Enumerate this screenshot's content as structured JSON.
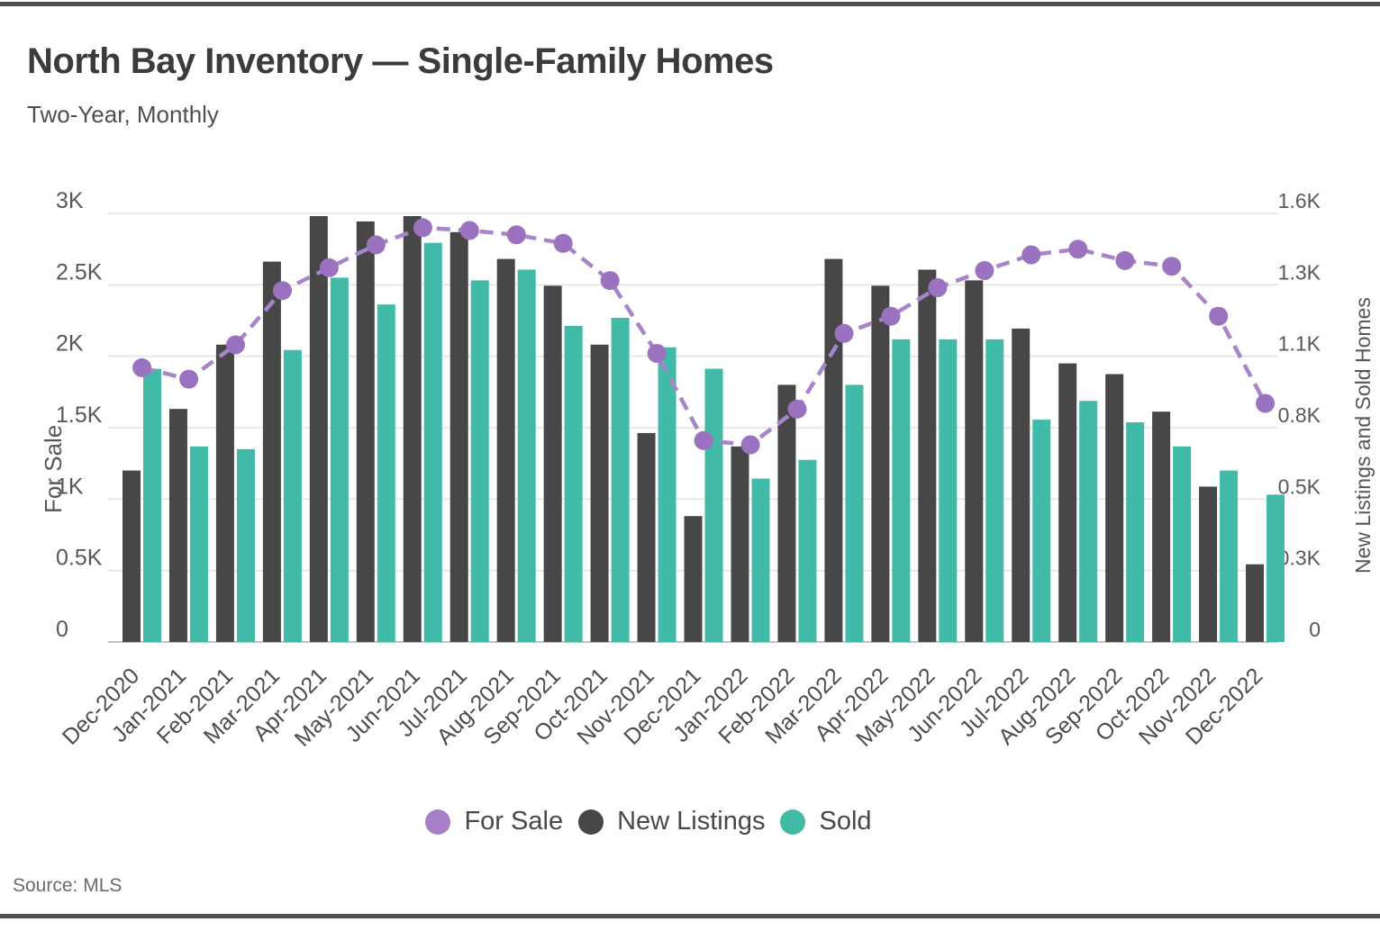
{
  "header": {
    "title": "North Bay Inventory — Single-Family Homes",
    "subtitle": "Two-Year, Monthly"
  },
  "footer": {
    "source": "Source: MLS"
  },
  "legend": {
    "items": [
      {
        "label": "For Sale",
        "color": "#a77fc9"
      },
      {
        "label": "New Listings",
        "color": "#474747"
      },
      {
        "label": "Sold",
        "color": "#41bba7"
      }
    ]
  },
  "chart_data": {
    "type": "combo-bar-line",
    "title": "North Bay Inventory — Single-Family Homes",
    "subtitle": "Two-Year, Monthly",
    "grid": true,
    "legend_position": "bottom",
    "categories": [
      "Dec-2020",
      "Jan-2021",
      "Feb-2021",
      "Mar-2021",
      "Apr-2021",
      "May-2021",
      "Jun-2021",
      "Jul-2021",
      "Aug-2021",
      "Sep-2021",
      "Oct-2021",
      "Nov-2021",
      "Dec-2021",
      "Jan-2022",
      "Feb-2022",
      "Mar-2022",
      "Apr-2022",
      "May-2022",
      "Jun-2022",
      "Jul-2022",
      "Aug-2022",
      "Sep-2022",
      "Oct-2022",
      "Nov-2022",
      "Dec-2022"
    ],
    "series": [
      {
        "name": "For Sale",
        "type": "line",
        "axis": "left",
        "color": "#a685ca",
        "dot_color": "#9b72c0",
        "values": [
          1920,
          1840,
          2080,
          2460,
          2620,
          2780,
          2900,
          2880,
          2850,
          2790,
          2530,
          2020,
          1410,
          1380,
          1630,
          2160,
          2280,
          2480,
          2600,
          2710,
          2750,
          2670,
          2630,
          2280,
          1670
        ]
      },
      {
        "name": "New Listings",
        "type": "bar",
        "axis": "right",
        "color": "#474747",
        "values": [
          640,
          870,
          1110,
          1420,
          1590,
          1570,
          1590,
          1530,
          1430,
          1330,
          1110,
          780,
          470,
          730,
          960,
          1430,
          1330,
          1390,
          1350,
          1170,
          1040,
          1000,
          860,
          580,
          290
        ]
      },
      {
        "name": "Sold",
        "type": "bar",
        "axis": "right",
        "color": "#41bba7",
        "values": [
          1020,
          730,
          720,
          1090,
          1360,
          1260,
          1490,
          1350,
          1390,
          1180,
          1210,
          1100,
          1020,
          610,
          680,
          960,
          1130,
          1130,
          1130,
          830,
          900,
          820,
          730,
          640,
          550
        ]
      }
    ],
    "left_axis": {
      "title": "For Sale",
      "range": [
        0,
        3000
      ],
      "tick_step": 500,
      "ticks": [
        "0",
        "0.5K",
        "1K",
        "1.5K",
        "2K",
        "2.5K",
        "3K"
      ]
    },
    "right_axis": {
      "title": "New Listings and Sold Homes",
      "range": [
        0,
        1600
      ],
      "ticks": [
        "0",
        "0.3K",
        "0.5K",
        "0.8K",
        "1.1K",
        "1.3K",
        "1.6K"
      ]
    }
  }
}
